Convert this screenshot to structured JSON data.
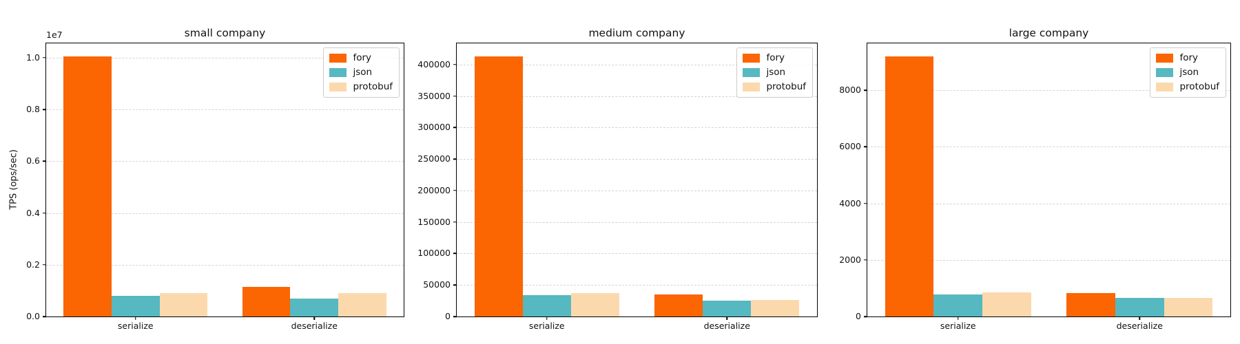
{
  "figure": {
    "background_color": "#ffffff",
    "grid_color": "#d4d4d4",
    "spine_color": "#000000"
  },
  "chart_data": [
    {
      "type": "bar",
      "title": "small company",
      "ylabel": "TPS (ops/sec)",
      "offset_label": "1e7",
      "xlabel": "",
      "categories": [
        "serialize",
        "deserialize"
      ],
      "series": [
        {
          "name": "fory",
          "color": "#fb6502",
          "values": [
            10050000,
            1140000
          ]
        },
        {
          "name": "json",
          "color": "#56b8c0",
          "values": [
            790000,
            700000
          ]
        },
        {
          "name": "protobuf",
          "color": "#fcd9ad",
          "values": [
            915000,
            900000
          ]
        }
      ],
      "ylim": [
        0,
        10553000
      ],
      "yticks": {
        "values": [
          0,
          2000000,
          4000000,
          6000000,
          8000000,
          10000000
        ],
        "labels": [
          "0.0",
          "0.2",
          "0.4",
          "0.6",
          "0.8",
          "1.0"
        ]
      },
      "grid": "horizontal-dashed",
      "legend_position": "upper-right"
    },
    {
      "type": "bar",
      "title": "medium company",
      "ylabel": "",
      "offset_label": "",
      "xlabel": "",
      "categories": [
        "serialize",
        "deserialize"
      ],
      "series": [
        {
          "name": "fory",
          "color": "#fb6502",
          "values": [
            413000,
            35500
          ]
        },
        {
          "name": "json",
          "color": "#56b8c0",
          "values": [
            34000,
            25000
          ]
        },
        {
          "name": "protobuf",
          "color": "#fcd9ad",
          "values": [
            37000,
            26000
          ]
        }
      ],
      "ylim": [
        0,
        433650
      ],
      "yticks": {
        "values": [
          0,
          50000,
          100000,
          150000,
          200000,
          250000,
          300000,
          350000,
          400000
        ],
        "labels": [
          "0",
          "50000",
          "100000",
          "150000",
          "200000",
          "250000",
          "300000",
          "350000",
          "400000"
        ]
      },
      "grid": "horizontal-dashed",
      "legend_position": "upper-right"
    },
    {
      "type": "bar",
      "title": "large company",
      "ylabel": "",
      "offset_label": "",
      "xlabel": "",
      "categories": [
        "serialize",
        "deserialize"
      ],
      "series": [
        {
          "name": "fory",
          "color": "#fb6502",
          "values": [
            9200,
            820
          ]
        },
        {
          "name": "json",
          "color": "#56b8c0",
          "values": [
            790,
            650
          ]
        },
        {
          "name": "protobuf",
          "color": "#fcd9ad",
          "values": [
            860,
            650
          ]
        }
      ],
      "ylim": [
        0,
        9660
      ],
      "yticks": {
        "values": [
          0,
          2000,
          4000,
          6000,
          8000
        ],
        "labels": [
          "0",
          "2000",
          "4000",
          "6000",
          "8000"
        ]
      },
      "grid": "horizontal-dashed",
      "legend_position": "upper-right"
    }
  ]
}
